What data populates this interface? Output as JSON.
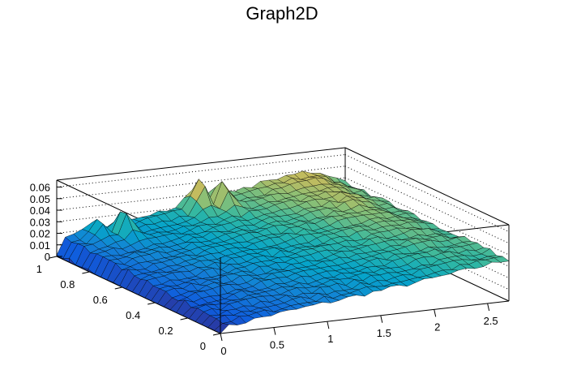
{
  "chart_data": {
    "type": "surface",
    "title": "Graph2D",
    "xlabel": "",
    "ylabel": "",
    "zlabel": "",
    "x_range": [
      0,
      2.7
    ],
    "y_range": [
      0,
      1
    ],
    "z_range": [
      0,
      0.066
    ],
    "x_ticks": [
      "0",
      "0.5",
      "1",
      "1.5",
      "2",
      "2.5"
    ],
    "x_tick_values": [
      0,
      0.5,
      1,
      1.5,
      2,
      2.5
    ],
    "y_ticks": [
      "0",
      "0.2",
      "0.4",
      "0.6",
      "0.8",
      "1"
    ],
    "y_tick_values": [
      0,
      0.2,
      0.4,
      0.6,
      0.8,
      1
    ],
    "z_ticks": [
      "0",
      "0.01",
      "0.02",
      "0.03",
      "0.04",
      "0.05",
      "0.06"
    ],
    "z_tick_values": [
      0,
      0.01,
      0.02,
      0.03,
      0.04,
      0.05,
      0.06
    ],
    "grid": "dotted on back walls",
    "colormap": [
      "#352a87",
      "#0f5cdd",
      "#1481d6",
      "#06a4ca",
      "#2eb7a4",
      "#87bf77",
      "#d1bb59",
      "#fec832",
      "#f9fb0e"
    ],
    "surface_z_at_y0": [
      0.004,
      0.01,
      0.014,
      0.018,
      0.022,
      0.026,
      0.031,
      0.036
    ],
    "surface_z_at_y1": [
      0.015,
      0.02,
      0.026,
      0.032,
      0.038,
      0.044,
      0.05,
      0.036
    ],
    "peaks": [
      {
        "x": 1.25,
        "y": 0.95,
        "z": 0.06
      },
      {
        "x": 1.45,
        "y": 0.92,
        "z": 0.058
      },
      {
        "x": 0.5,
        "y": 0.9,
        "z": 0.045
      },
      {
        "x": 0.3,
        "y": 0.95,
        "z": 0.033
      }
    ]
  }
}
